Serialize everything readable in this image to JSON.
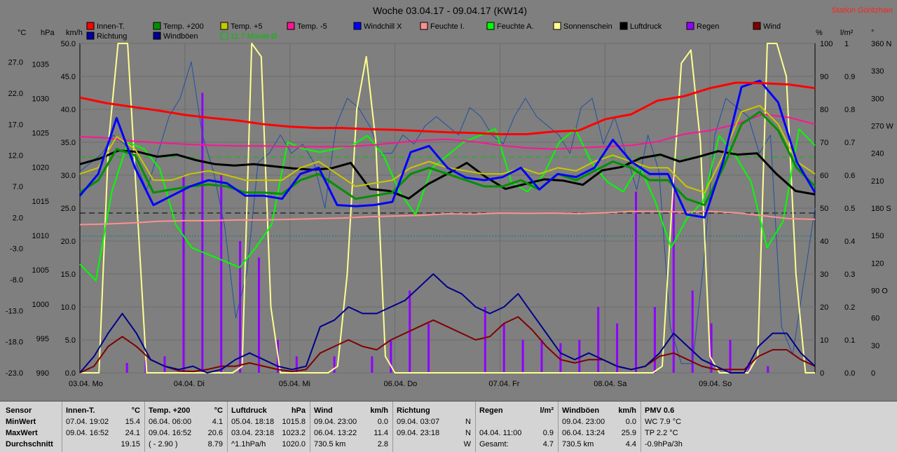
{
  "chart_data": {
    "type": "line",
    "title": "Woche 03.04.17 - 09.04.17 (KW14)",
    "station": "Station Göritzhain",
    "days": [
      "03.04. Mo",
      "04.04. Di",
      "05.04. Mi",
      "06.04. Do",
      "07.04. Fr",
      "08.04. Sa",
      "09.04. So"
    ],
    "axes": {
      "temp": {
        "unit": "°C",
        "ticks": [
          "27.0",
          "22.0",
          "17.0",
          "12.0",
          "7.0",
          "2.0",
          "-3.0",
          "-8.0",
          "-13.0",
          "-18.0",
          "-23.0"
        ]
      },
      "pressure": {
        "unit": "hPa",
        "ticks": [
          "1035",
          "1030",
          "1025",
          "1020",
          "1015",
          "1010",
          "1005",
          "1000",
          "995",
          "990"
        ]
      },
      "wind": {
        "unit": "km/h",
        "ticks": [
          "50.0",
          "45.0",
          "40.0",
          "35.0",
          "30.0",
          "25.0",
          "20.0",
          "15.0",
          "10.0",
          "5.0",
          "0.0"
        ]
      },
      "humidity": {
        "unit": "%",
        "ticks": [
          "100",
          "90",
          "80",
          "70",
          "60",
          "50",
          "40",
          "30",
          "20",
          "10",
          "0"
        ]
      },
      "rain": {
        "unit": "l/m²",
        "ticks": [
          "1",
          "0.9",
          "0.8",
          "0.7",
          "0.6",
          "0.5",
          "0.4",
          "0.3",
          "0.2",
          "0.1",
          "0.0"
        ]
      },
      "direction": {
        "unit": "°",
        "ticks": [
          "360 N",
          "330",
          "300",
          "270 W",
          "240",
          "210",
          "180 S",
          "150",
          "120",
          "90 O",
          "60",
          "30",
          "0"
        ]
      }
    },
    "legend": [
      {
        "name": "Innen-T.",
        "color": "#ff0000"
      },
      {
        "name": "Temp. +200",
        "color": "#009000"
      },
      {
        "name": "Temp. +5",
        "color": "#c8c800"
      },
      {
        "name": "Temp. -5",
        "color": "#ff1493"
      },
      {
        "name": "Windchill X",
        "color": "#0000ff"
      },
      {
        "name": "Feuchte I.",
        "color": "#ff9090"
      },
      {
        "name": "Feuchte A.",
        "color": "#00ff00"
      },
      {
        "name": "Sonnenschein",
        "color": "#ffff90"
      },
      {
        "name": "Luftdruck",
        "color": "#000000"
      },
      {
        "name": "Regen",
        "color": "#9000ff"
      },
      {
        "name": "Wind",
        "color": "#800000"
      },
      {
        "name": "Richtung",
        "color": "#0000a0"
      },
      {
        "name": "Windböen",
        "color": "#00008b"
      },
      {
        "name": "11.7 Monat-Ø",
        "color": "#00c000"
      }
    ],
    "series": [
      {
        "name": "Innen-T.",
        "axis": "temp",
        "color": "#ff0000",
        "values": [
          21.3,
          20.4,
          19.8,
          19.2,
          18.5,
          18.0,
          17.6,
          17.0,
          16.6,
          16.4,
          16.4,
          16.2,
          16.1,
          15.9,
          15.7,
          15.6,
          15.4,
          15.4,
          15.8,
          16.0,
          17.8,
          18.6,
          20.8,
          21.5,
          22.8,
          23.7,
          23.6,
          23.4,
          22.8
        ]
      },
      {
        "name": "Windchill X",
        "axis": "temp",
        "color": "#0000ff",
        "values": [
          5.5,
          9,
          18,
          10,
          4,
          5.5,
          7,
          8,
          7.5,
          5.5,
          5.5,
          5,
          9,
          10,
          4,
          3.8,
          4,
          4.5,
          12.5,
          13.5,
          10,
          8.4,
          8,
          8.5,
          10,
          6.5,
          9,
          8.5,
          10,
          14.5,
          11,
          9,
          9,
          2.5,
          2,
          11,
          23,
          24,
          20.5,
          11,
          6
        ]
      },
      {
        "name": "Temp. +200",
        "axis": "temp",
        "color": "#009000",
        "values": [
          6,
          8,
          13,
          12,
          6,
          6.5,
          7,
          7.3,
          7,
          6,
          6,
          5.8,
          8,
          9,
          7,
          5,
          5.5,
          6,
          9,
          10,
          9,
          8,
          7,
          7,
          8,
          6.5,
          9,
          8,
          9.5,
          11,
          10,
          8,
          8,
          5,
          4,
          10,
          17,
          19,
          16,
          10,
          7
        ]
      },
      {
        "name": "Temp. +5",
        "axis": "temp",
        "color": "#c8c800",
        "values": [
          9,
          10,
          15,
          13,
          8,
          8,
          9,
          9.5,
          8.8,
          8,
          8,
          8,
          10,
          11,
          9,
          7,
          7.5,
          8,
          10,
          11,
          10,
          9.5,
          9,
          9,
          10,
          9,
          10,
          9.5,
          11,
          12,
          11,
          10,
          10,
          7,
          6,
          12,
          19,
          20,
          17,
          11,
          9
        ]
      },
      {
        "name": "Temp. -5",
        "axis": "temp",
        "color": "#ff1493",
        "values": [
          15,
          14.8,
          14.3,
          14,
          13.8,
          13.6,
          13.5,
          13.5,
          13.4,
          13.4,
          13.4,
          13.6,
          14,
          14.4,
          14.6,
          14.2,
          13.6,
          13.2,
          13,
          13.2,
          13.4,
          13.6,
          14.2,
          15.4,
          16,
          17,
          18.6,
          18.1,
          17
        ]
      },
      {
        "name": "Luftdruck",
        "axis": "pressure",
        "color": "#000000",
        "values": [
          1020.4,
          1021.2,
          1022.4,
          1022.2,
          1021.5,
          1021.8,
          1021.0,
          1020.4,
          1020.2,
          1020.4,
          1020.1,
          1019.8,
          1019.6,
          1019.8,
          1020.6,
          1016.8,
          1016.5,
          1015.4,
          1017.5,
          1019.0,
          1020.6,
          1018.5,
          1016.8,
          1017.5,
          1018.2,
          1018.0,
          1017.4,
          1019.5,
          1020.0,
          1021.3,
          1021.8,
          1020.8,
          1021.5,
          1022.3,
          1021.8,
          1022.0,
          1019.0,
          1016.5,
          1016.0
        ]
      },
      {
        "name": "Feuchte I.",
        "axis": "humidity",
        "color": "#ff9090",
        "values": [
          45,
          45.2,
          45.5,
          46,
          46.2,
          46.2,
          46.4,
          46.4,
          46.6,
          46.8,
          47,
          47.4,
          47.6,
          47.8,
          48.3,
          48.2,
          48.5,
          48.4,
          48.5,
          48.3,
          48.6,
          49,
          49,
          48.8,
          49,
          48.6,
          47.7,
          46.8,
          46.6
        ]
      },
      {
        "name": "Feuchte A.",
        "axis": "humidity",
        "color": "#00ff00",
        "values": [
          33,
          28,
          55,
          70,
          68,
          62,
          45,
          38,
          36,
          34,
          32,
          38,
          45,
          70,
          68,
          67,
          68,
          69,
          72,
          66,
          55,
          48,
          62,
          66,
          70,
          72,
          74,
          58,
          55,
          60,
          70,
          74,
          64,
          58,
          55,
          63,
          52,
          38,
          47,
          52,
          72,
          66,
          58,
          38,
          46,
          74,
          69
        ]
      },
      {
        "name": "Sonnenschein",
        "axis": "humidity",
        "color": "#ffff90",
        "values": [
          0,
          0,
          0,
          70,
          100,
          100,
          50,
          0,
          0,
          0,
          0,
          0,
          0,
          0,
          0,
          0,
          0,
          2,
          100,
          96,
          20,
          0,
          0,
          0,
          0,
          0,
          0,
          2,
          30,
          80,
          96,
          70,
          5,
          0,
          0,
          0,
          0,
          0,
          0,
          0,
          0,
          0,
          0,
          0,
          0,
          0,
          0,
          0,
          0,
          0,
          0,
          0,
          0,
          0,
          0,
          0,
          0,
          0,
          0,
          0,
          0,
          2,
          50,
          94,
          98,
          70,
          5,
          0,
          0,
          0,
          0,
          5,
          100,
          100,
          90,
          30,
          0,
          0
        ]
      },
      {
        "name": "Regen",
        "axis": "rain",
        "color": "#9000ff",
        "type": "bar",
        "values": [
          0,
          0,
          0.03,
          0.04,
          0.05,
          0.6,
          0.85,
          0.6,
          0.4,
          0.35,
          0.1,
          0.05,
          0,
          0.05,
          0,
          0.05,
          0.1,
          0.25,
          0.15,
          0,
          0,
          0.2,
          0.15,
          0.1,
          0.1,
          0.09,
          0.1,
          0.2,
          0.15,
          0.55,
          0.2,
          0.6,
          0.25,
          0.15,
          0.1,
          0.03,
          0.02,
          0,
          0
        ]
      },
      {
        "name": "Wind",
        "axis": "wind",
        "color": "#800000",
        "values": [
          0,
          1,
          4,
          5.5,
          4,
          2,
          1,
          0.3,
          0.2,
          0.5,
          1,
          1,
          1.5,
          1,
          0.5,
          0.2,
          0.5,
          3,
          4,
          5,
          4,
          3.5,
          5,
          6,
          7,
          8,
          7,
          6,
          5,
          5.5,
          7.5,
          8.5,
          6.5,
          4,
          2,
          1.5,
          2,
          2,
          1,
          0.5,
          1,
          2.5,
          3,
          2,
          1,
          0.5,
          0.5,
          0.5,
          2.5,
          3.5,
          3.5,
          2,
          1
        ]
      },
      {
        "name": "Windböen",
        "axis": "wind",
        "color": "#00008b",
        "values": [
          0,
          2.5,
          6,
          9,
          6,
          2,
          1,
          0.5,
          1,
          0,
          0.5,
          2,
          3,
          2,
          1,
          0.5,
          1,
          7,
          8,
          10,
          9,
          9,
          10,
          11,
          13,
          15,
          13,
          12,
          10,
          9,
          10,
          12,
          9,
          6,
          3,
          2,
          3,
          2,
          1,
          0.5,
          1,
          3,
          6,
          4,
          2,
          1,
          0,
          0,
          4,
          6,
          6,
          3,
          1
        ]
      },
      {
        "name": "Richtung",
        "axis": "direction",
        "color": "#2050a0",
        "values": [
          220,
          230,
          240,
          260,
          250,
          230,
          200,
          240,
          280,
          300,
          340,
          260,
          220,
          160,
          60,
          110,
          230,
          240,
          260,
          240,
          250,
          230,
          180,
          270,
          300,
          290,
          270,
          240,
          240,
          260,
          250,
          270,
          280,
          270,
          260,
          290,
          280,
          260,
          250,
          280,
          300,
          280,
          270,
          260,
          240,
          290,
          300,
          250,
          280,
          240,
          200,
          260,
          220,
          50,
          10,
          10,
          120,
          260,
          300,
          290,
          280,
          240,
          260,
          50,
          20,
          100,
          180
        ]
      }
    ],
    "reference_lines": [
      {
        "name": "11.7 Monat-Ø",
        "axis": "temp",
        "value": 11.7,
        "color": "#00c000",
        "style": "dashed"
      },
      {
        "axis": "humidity",
        "value": 48.5,
        "color": "#000000",
        "style": "dashed"
      },
      {
        "axis": "temp",
        "value": -1,
        "color": "#008080",
        "style": "dotted"
      }
    ],
    "grid": true
  },
  "stats": {
    "labels": {
      "sensor": "Sensor",
      "min": "MinWert",
      "max": "MaxWert",
      "avg": "Durchschnitt"
    },
    "columns": [
      {
        "title": "Innen-T.",
        "unit": "°C",
        "rows": [
          [
            "07.04.  19:02",
            "15.4"
          ],
          [
            "09.04.  16:52",
            "24.1"
          ],
          [
            "",
            "19.15"
          ]
        ]
      },
      {
        "title": "Temp. +200",
        "unit": "°C",
        "rows": [
          [
            "06.04.  06:00",
            "4.1"
          ],
          [
            "09.04.  16:52",
            "20.6"
          ],
          [
            "( - 2.90 )",
            "8.79"
          ]
        ]
      },
      {
        "title": "Luftdruck",
        "unit": "hPa",
        "rows": [
          [
            "05.04.  18:18",
            "1015.8"
          ],
          [
            "03.04.  23:18",
            "1023.2"
          ],
          [
            "^1.1hPa/h",
            "1020.0"
          ]
        ]
      },
      {
        "title": "Wind",
        "unit": "km/h",
        "rows": [
          [
            "09.04.  23:00",
            "0.0"
          ],
          [
            "06.04.  13:22",
            "11.4"
          ],
          [
            "730.5 km",
            "2.8"
          ]
        ]
      },
      {
        "title": "Richtung",
        "unit": "",
        "rows": [
          [
            "09.04.  03:07",
            "N"
          ],
          [
            "09.04.  23:18",
            "N"
          ],
          [
            "",
            "W"
          ]
        ]
      },
      {
        "title": "Regen",
        "unit": "l/m²",
        "rows": [
          [
            "",
            ""
          ],
          [
            "04.04.  11:00",
            "0.9"
          ],
          [
            "Gesamt:",
            "4.7"
          ]
        ]
      },
      {
        "title": "Windböen",
        "unit": "km/h",
        "rows": [
          [
            "09.04.  23:00",
            "0.0"
          ],
          [
            "06.04.  13:24",
            "25.9"
          ],
          [
            "730.5 km",
            "4.4"
          ]
        ]
      },
      {
        "title": "PMV 0.6",
        "unit": "",
        "rows": [
          [
            "WC 7.9 °C",
            ""
          ],
          [
            "TP 2.2 °C",
            ""
          ],
          [
            "-0.9hPa/3h",
            ""
          ]
        ]
      }
    ]
  }
}
